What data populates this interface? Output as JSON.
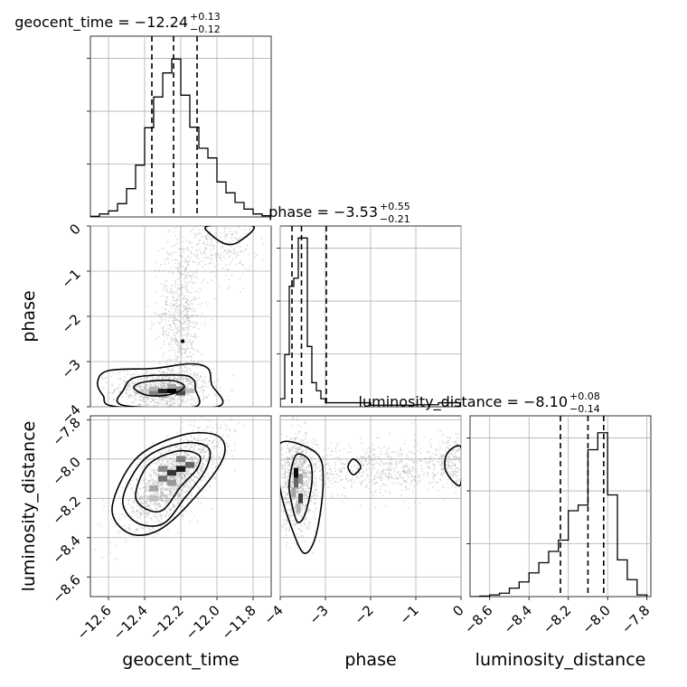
{
  "chart_data": {
    "type": "corner",
    "parameters": [
      "geocent_time",
      "phase",
      "luminosity_distance"
    ],
    "ranges": {
      "geocent_time": [
        -12.7,
        -11.7
      ],
      "phase": [
        -4.0,
        0.0
      ],
      "luminosity_distance": [
        -8.7,
        -7.78
      ]
    },
    "ticks": {
      "geocent_time": {
        "values": [
          -12.6,
          -12.4,
          -12.2,
          -12.0,
          -11.8
        ],
        "labels": [
          "−12.6",
          "−12.4",
          "−12.2",
          "−12.0",
          "−11.8"
        ]
      },
      "phase_x": {
        "values": [
          -4,
          -3,
          -2,
          -1,
          0
        ],
        "labels": [
          "−4",
          "−3",
          "−2",
          "−1",
          "0"
        ]
      },
      "phase_y": {
        "values": [
          0,
          -1,
          -2,
          -3,
          -4
        ],
        "labels": [
          "0",
          "−1",
          "−2",
          "−3",
          "−4"
        ]
      },
      "luminosity_distance": {
        "values": [
          -8.6,
          -8.4,
          -8.2,
          -8.0,
          -7.8
        ],
        "labels": [
          "−8.6",
          "−8.4",
          "−8.2",
          "−8.0",
          "−7.8"
        ]
      }
    },
    "axis_labels": {
      "geocent_time": "geocent_time",
      "phase": "phase",
      "luminosity_distance": "luminosity_distance"
    },
    "titles": [
      {
        "param": "geocent_time",
        "text": "geocent_time = −12.24",
        "plus": "+0.13",
        "minus": "−0.12"
      },
      {
        "param": "phase",
        "text": "phase = −3.53",
        "plus": "+0.55",
        "minus": "−0.21"
      },
      {
        "param": "luminosity_distance",
        "text": "luminosity_distance = −8.10",
        "plus": "+0.08",
        "minus": "−0.14"
      }
    ],
    "histograms": {
      "geocent_time": {
        "edges": [
          -12.7,
          -12.65,
          -12.6,
          -12.55,
          -12.5,
          -12.45,
          -12.4,
          -12.35,
          -12.3,
          -12.25,
          -12.2,
          -12.15,
          -12.1,
          -12.05,
          -12.0,
          -11.95,
          -11.9,
          -11.85,
          -11.8,
          -11.75,
          -11.7
        ],
        "counts": [
          1,
          5,
          10,
          22,
          47,
          86,
          148,
          199,
          239,
          262,
          202,
          149,
          114,
          98,
          58,
          40,
          24,
          13,
          5,
          2
        ],
        "quantiles": [
          -12.36,
          -12.24,
          -12.11
        ],
        "ymax": 300
      },
      "phase": {
        "edges": [
          -4.0,
          -3.9,
          -3.8,
          -3.7,
          -3.6,
          -3.5,
          -3.4,
          -3.3,
          -3.2,
          -3.1,
          -3.0,
          -2.0,
          -1.0,
          -0.5,
          0.0
        ],
        "counts": [
          2,
          13,
          30,
          32,
          42,
          42,
          15,
          6,
          4,
          2,
          1,
          0.4,
          0.5,
          1
        ],
        "quantiles": [
          -3.74,
          -3.53,
          -2.98
        ],
        "ymax": 45
      },
      "luminosity_distance": {
        "edges": [
          -8.7,
          -8.65,
          -8.6,
          -8.55,
          -8.5,
          -8.45,
          -8.4,
          -8.35,
          -8.3,
          -8.25,
          -8.2,
          -8.15,
          -8.1,
          -8.05,
          -8.0,
          -7.95,
          -7.9,
          -7.85,
          -7.8
        ],
        "counts": [
          0,
          1,
          3,
          6,
          15,
          26,
          42,
          60,
          80,
          100,
          152,
          162,
          260,
          290,
          180,
          65,
          30,
          3
        ],
        "quantiles": [
          -8.24,
          -8.1,
          -8.02
        ],
        "ymax": 320
      }
    },
    "scatter_clusters": {
      "time_phase": [
        {
          "x": -12.3,
          "y": -3.6,
          "sx": 0.13,
          "sy": 0.22,
          "n": 900
        },
        {
          "x": -12.2,
          "y": -2.0,
          "sx": 0.06,
          "sy": 0.9,
          "n": 700
        },
        {
          "x": -12.0,
          "y": -0.4,
          "sx": 0.1,
          "sy": 0.4,
          "n": 300
        }
      ],
      "time_dist": [
        {
          "x": -12.24,
          "y": -8.1,
          "sx": 0.13,
          "sy": 0.12,
          "n": 1600,
          "rho": 0.7
        }
      ],
      "phase_dist": [
        {
          "x": -3.6,
          "y": -8.12,
          "sx": 0.2,
          "sy": 0.12,
          "n": 900
        },
        {
          "x": -1.8,
          "y": -8.05,
          "sx": 1.0,
          "sy": 0.07,
          "n": 700
        },
        {
          "x": -0.25,
          "y": -8.0,
          "sx": 0.2,
          "sy": 0.06,
          "n": 200
        }
      ]
    },
    "contours": {
      "time_phase": [
        [
          [
            -12.45,
            -3.35
          ],
          [
            -12.2,
            -3.3
          ],
          [
            -12.13,
            -3.4
          ],
          [
            -12.12,
            -3.6
          ],
          [
            -12.12,
            -4.0
          ],
          [
            -12.45,
            -4.0
          ],
          [
            -12.55,
            -3.9
          ],
          [
            -12.52,
            -3.65
          ]
        ],
        [
          [
            -12.6,
            -3.2
          ],
          [
            -12.35,
            -3.15
          ],
          [
            -12.15,
            -3.05
          ],
          [
            -12.05,
            -3.15
          ],
          [
            -12.03,
            -3.5
          ],
          [
            -12.0,
            -4.0
          ],
          [
            -12.55,
            -4.0
          ],
          [
            -12.63,
            -3.75
          ],
          [
            -12.66,
            -3.45
          ]
        ],
        [
          [
            -12.46,
            -3.58
          ],
          [
            -12.4,
            -3.45
          ],
          [
            -12.25,
            -3.42
          ],
          [
            -12.18,
            -3.55
          ],
          [
            -12.25,
            -3.72
          ],
          [
            -12.38,
            -3.75
          ]
        ],
        [
          [
            -12.05,
            0.0
          ],
          [
            -11.8,
            0.0
          ],
          [
            -11.88,
            -0.35
          ],
          [
            -11.95,
            -0.4
          ],
          [
            -12.03,
            -0.2
          ]
        ]
      ],
      "time_dist": [
        [
          [
            -12.4,
            -8.25
          ],
          [
            -12.45,
            -8.18
          ],
          [
            -12.38,
            -8.03
          ],
          [
            -12.22,
            -7.96
          ],
          [
            -12.1,
            -7.98
          ],
          [
            -12.11,
            -8.05
          ],
          [
            -12.2,
            -8.14
          ],
          [
            -12.3,
            -8.26
          ]
        ],
        [
          [
            -12.45,
            -8.32
          ],
          [
            -12.52,
            -8.2
          ],
          [
            -12.4,
            -8.0
          ],
          [
            -12.2,
            -7.92
          ],
          [
            -12.05,
            -7.94
          ],
          [
            -12.06,
            -8.05
          ],
          [
            -12.18,
            -8.2
          ],
          [
            -12.3,
            -8.33
          ]
        ],
        [
          [
            -12.48,
            -8.38
          ],
          [
            -12.58,
            -8.25
          ],
          [
            -12.45,
            -8.0
          ],
          [
            -12.2,
            -7.88
          ],
          [
            -12.0,
            -7.88
          ],
          [
            -11.96,
            -7.98
          ],
          [
            -12.08,
            -8.15
          ],
          [
            -12.3,
            -8.35
          ]
        ]
      ],
      "phase_dist": [
        [
          [
            -3.8,
            -8.12
          ],
          [
            -3.65,
            -7.98
          ],
          [
            -3.35,
            -8.01
          ],
          [
            -3.3,
            -8.12
          ],
          [
            -3.45,
            -8.28
          ],
          [
            -3.62,
            -8.32
          ],
          [
            -3.75,
            -8.22
          ]
        ],
        [
          [
            -4.0,
            -7.92
          ],
          [
            -3.2,
            -7.97
          ],
          [
            -3.05,
            -8.12
          ],
          [
            -3.2,
            -8.38
          ],
          [
            -3.45,
            -8.48
          ],
          [
            -3.7,
            -8.38
          ],
          [
            -4.0,
            -8.15
          ]
        ],
        [
          [
            -2.5,
            -8.04
          ],
          [
            -2.38,
            -8.0
          ],
          [
            -2.22,
            -8.04
          ],
          [
            -2.38,
            -8.08
          ]
        ],
        [
          [
            0.0,
            -7.94
          ],
          [
            -0.3,
            -7.97
          ],
          [
            -0.35,
            -8.05
          ],
          [
            -0.15,
            -8.12
          ],
          [
            0.0,
            -8.12
          ]
        ]
      ]
    },
    "density_pixels": {
      "time_phase": [
        [
          -12.3,
          -3.65,
          0.85
        ],
        [
          -12.25,
          -3.65,
          1.0
        ],
        [
          -12.2,
          -3.7,
          0.7
        ],
        [
          -12.35,
          -3.7,
          0.5
        ],
        [
          -12.3,
          -3.75,
          0.4
        ],
        [
          -12.25,
          -3.55,
          0.35
        ],
        [
          -12.2,
          -3.6,
          0.45
        ],
        [
          -12.35,
          -3.6,
          0.3
        ],
        [
          -12.15,
          -3.65,
          0.25
        ],
        [
          -12.4,
          -3.65,
          0.2
        ]
      ],
      "time_dist": [
        [
          -12.2,
          -8.05,
          0.9
        ],
        [
          -12.25,
          -8.07,
          0.8
        ],
        [
          -12.3,
          -8.1,
          0.55
        ],
        [
          -12.15,
          -8.03,
          0.6
        ],
        [
          -12.25,
          -8.12,
          0.4
        ],
        [
          -12.35,
          -8.15,
          0.35
        ],
        [
          -12.2,
          -8.0,
          0.5
        ],
        [
          -12.3,
          -8.05,
          0.45
        ],
        [
          -12.35,
          -8.2,
          0.25
        ]
      ],
      "phase_dist": [
        [
          -3.65,
          -8.07,
          0.95
        ],
        [
          -3.65,
          -8.12,
          0.6
        ],
        [
          -3.55,
          -8.2,
          0.75
        ],
        [
          -3.7,
          -8.17,
          0.35
        ],
        [
          -3.55,
          -8.1,
          0.4
        ],
        [
          -3.6,
          -8.25,
          0.3
        ]
      ]
    }
  }
}
